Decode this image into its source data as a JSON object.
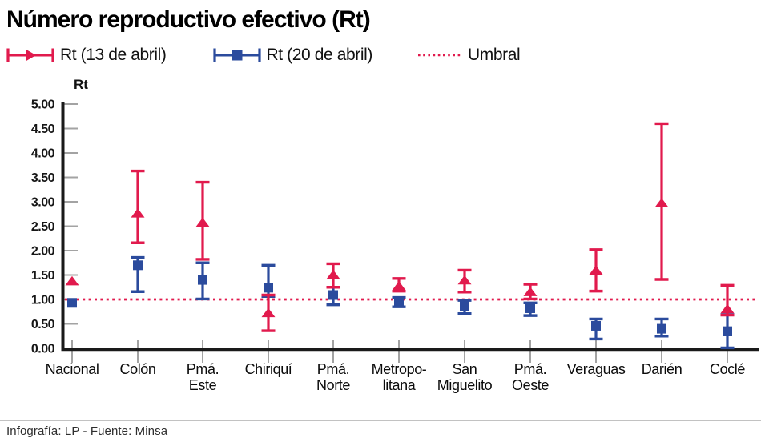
{
  "title": "Número reproductivo efectivo (Rt)",
  "footer": "Infografía: LP - Fuente: Minsa",
  "colors": {
    "red": "#e11a4d",
    "blue": "#2b4b9d",
    "axis": "#1a1a1a",
    "tick": "#a3a3a3"
  },
  "legend": [
    {
      "label": "Rt (13 de abril)",
      "glyph": "errorbar-triangle",
      "color": "#e11a4d"
    },
    {
      "label": "Rt (20 de abril)",
      "glyph": "errorbar-square",
      "color": "#2b4b9d"
    },
    {
      "label": "Umbral",
      "glyph": "dotted-line",
      "color": "#e11a4d"
    }
  ],
  "chart_data": {
    "type": "scatter",
    "title": "Número reproductivo efectivo (Rt)",
    "ylabel": "Rt",
    "xlabel": "",
    "ylim": [
      0,
      5
    ],
    "yticks": [
      "0.00",
      "0.50",
      "1.00",
      "1.50",
      "2.00",
      "2.50",
      "3.00",
      "3.50",
      "4.00",
      "4.50",
      "5.00"
    ],
    "grid": false,
    "legend_position": "top",
    "threshold": {
      "label": "Umbral",
      "value": 1.0,
      "style": "dotted",
      "color": "#e11a4d"
    },
    "categories": [
      "Nacional",
      "Colón",
      "Pmá. Este",
      "Chiriquí",
      "Pmá. Norte",
      "Metropolitana",
      "San Miguelito",
      "Pmá. Oeste",
      "Veraguas",
      "Darién",
      "Coclé"
    ],
    "category_label_lines": [
      [
        "Nacional"
      ],
      [
        "Colón"
      ],
      [
        "Pmá.",
        "Este"
      ],
      [
        "Chiriquí"
      ],
      [
        "Pmá.",
        "Norte"
      ],
      [
        "Metropo-",
        "litana"
      ],
      [
        "San",
        "Miguelito"
      ],
      [
        "Pmá.",
        "Oeste"
      ],
      [
        "Veraguas"
      ],
      [
        "Darién"
      ],
      [
        "Coclé"
      ]
    ],
    "series": [
      {
        "name": "Rt (13 de abril)",
        "marker": "triangle",
        "color": "#e11a4d",
        "values": [
          1.37,
          2.76,
          2.57,
          0.72,
          1.5,
          1.27,
          1.39,
          1.15,
          1.59,
          2.97,
          0.8
        ],
        "ci_low": [
          null,
          2.16,
          1.82,
          0.36,
          1.25,
          1.17,
          1.15,
          1.01,
          1.17,
          1.41,
          0.68
        ],
        "ci_high": [
          null,
          3.63,
          3.4,
          1.09,
          1.73,
          1.43,
          1.6,
          1.31,
          2.02,
          4.6,
          1.29
        ]
      },
      {
        "name": "Rt (20 de abril)",
        "marker": "square",
        "color": "#2b4b9d",
        "values": [
          0.93,
          1.7,
          1.4,
          1.24,
          1.09,
          0.95,
          0.86,
          0.82,
          0.46,
          0.4,
          0.35
        ],
        "ci_low": [
          null,
          1.16,
          1.01,
          1.06,
          0.89,
          0.85,
          0.71,
          0.67,
          0.19,
          0.25,
          0.01
        ],
        "ci_high": [
          null,
          1.86,
          1.75,
          1.7,
          1.25,
          1.04,
          0.98,
          0.93,
          0.6,
          0.6,
          0.69
        ]
      }
    ]
  }
}
